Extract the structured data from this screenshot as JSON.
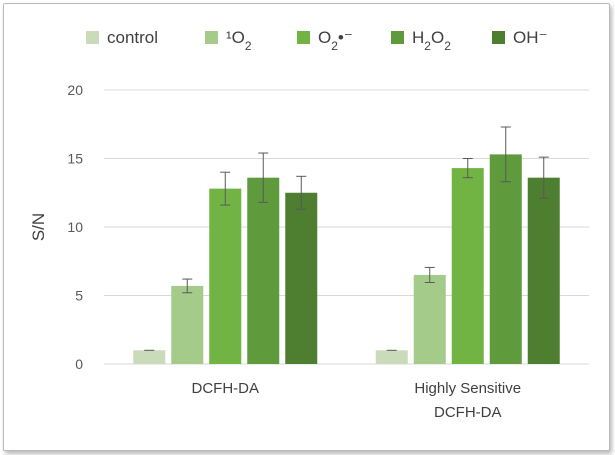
{
  "chart_data": {
    "type": "bar",
    "title": "",
    "xlabel": "",
    "ylabel": "S/N",
    "ylim": [
      0,
      20
    ],
    "yticks": [
      0,
      5,
      10,
      15,
      20
    ],
    "grid": true,
    "legend_position": "top",
    "categories": [
      {
        "lines": [
          "DCFH-DA"
        ]
      },
      {
        "lines": [
          "Highly Sensitive",
          "DCFH-DA"
        ]
      }
    ],
    "series": [
      {
        "name": "control",
        "legend_parts": [
          [
            "control",
            ""
          ]
        ],
        "color": "#c9dbb8",
        "values": [
          1.0,
          1.0
        ],
        "errors": [
          0.0,
          0.0
        ]
      },
      {
        "name": "¹O₂",
        "legend_parts": [
          [
            "¹O",
            ""
          ],
          [
            "2",
            "sub"
          ]
        ],
        "color": "#a5cb8b",
        "values": [
          5.7,
          6.5
        ],
        "errors": [
          0.5,
          0.55
        ]
      },
      {
        "name": "O₂•⁻",
        "legend_parts": [
          [
            "O",
            ""
          ],
          [
            "2",
            "sub"
          ],
          [
            "•⁻",
            ""
          ]
        ],
        "color": "#72b444",
        "values": [
          12.8,
          14.3
        ],
        "errors": [
          1.2,
          0.7
        ]
      },
      {
        "name": "H₂O₂",
        "legend_parts": [
          [
            "H",
            ""
          ],
          [
            "2",
            "sub"
          ],
          [
            "O",
            ""
          ],
          [
            "2",
            "sub"
          ]
        ],
        "color": "#5f9b3c",
        "values": [
          13.6,
          15.3
        ],
        "errors": [
          1.8,
          2.0
        ]
      },
      {
        "name": "OH⁻",
        "legend_parts": [
          [
            "OH⁻",
            ""
          ]
        ],
        "color": "#4e7f31",
        "values": [
          12.5,
          13.6
        ],
        "errors": [
          1.2,
          1.5
        ]
      }
    ]
  }
}
